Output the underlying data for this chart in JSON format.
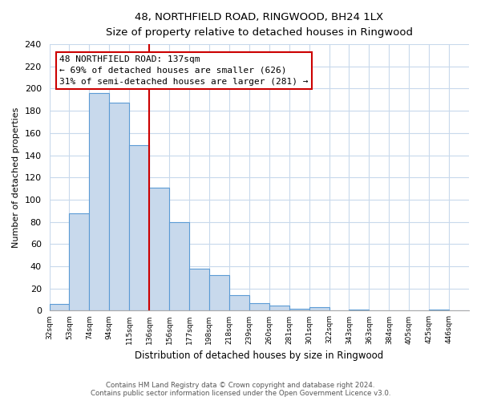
{
  "title": "48, NORTHFIELD ROAD, RINGWOOD, BH24 1LX",
  "subtitle": "Size of property relative to detached houses in Ringwood",
  "xlabel": "Distribution of detached houses by size in Ringwood",
  "ylabel": "Number of detached properties",
  "bar_labels": [
    "32sqm",
    "53sqm",
    "74sqm",
    "94sqm",
    "115sqm",
    "136sqm",
    "156sqm",
    "177sqm",
    "198sqm",
    "218sqm",
    "239sqm",
    "260sqm",
    "281sqm",
    "301sqm",
    "322sqm",
    "343sqm",
    "363sqm",
    "384sqm",
    "405sqm",
    "425sqm",
    "446sqm"
  ],
  "bar_values": [
    6,
    88,
    196,
    187,
    149,
    111,
    80,
    38,
    32,
    14,
    7,
    5,
    2,
    3,
    0,
    1,
    0,
    0,
    0,
    1,
    0
  ],
  "bar_color": "#c8d9ec",
  "bar_edge_color": "#5b9bd5",
  "reference_line_x": 5,
  "reference_line_color": "#cc0000",
  "annotation_title": "48 NORTHFIELD ROAD: 137sqm",
  "annotation_line1": "← 69% of detached houses are smaller (626)",
  "annotation_line2": "31% of semi-detached houses are larger (281) →",
  "annotation_box_color": "#ffffff",
  "annotation_box_edge_color": "#cc0000",
  "ylim": [
    0,
    240
  ],
  "yticks": [
    0,
    20,
    40,
    60,
    80,
    100,
    120,
    140,
    160,
    180,
    200,
    220,
    240
  ],
  "footer_line1": "Contains HM Land Registry data © Crown copyright and database right 2024.",
  "footer_line2": "Contains public sector information licensed under the Open Government Licence v3.0.",
  "bg_color": "#ffffff",
  "grid_color": "#c8d9ec",
  "xlim_left": 0,
  "xlim_right": 21
}
